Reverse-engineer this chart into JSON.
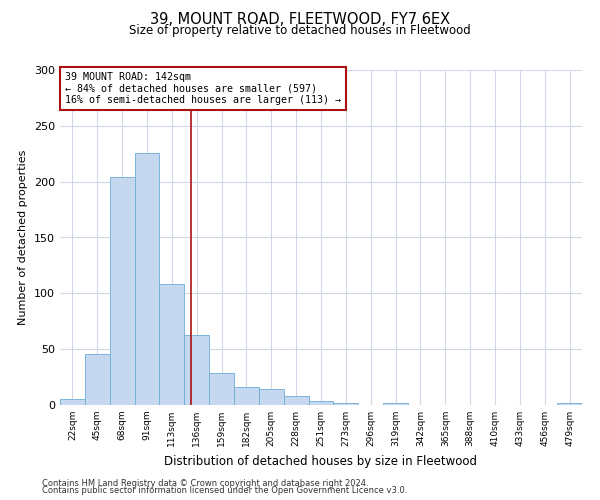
{
  "title": "39, MOUNT ROAD, FLEETWOOD, FY7 6EX",
  "subtitle": "Size of property relative to detached houses in Fleetwood",
  "xlabel": "Distribution of detached houses by size in Fleetwood",
  "ylabel": "Number of detached properties",
  "bar_labels": [
    "22sqm",
    "45sqm",
    "68sqm",
    "91sqm",
    "113sqm",
    "136sqm",
    "159sqm",
    "182sqm",
    "205sqm",
    "228sqm",
    "251sqm",
    "273sqm",
    "296sqm",
    "319sqm",
    "342sqm",
    "365sqm",
    "388sqm",
    "410sqm",
    "433sqm",
    "456sqm",
    "479sqm"
  ],
  "bar_heights": [
    5,
    46,
    204,
    226,
    108,
    63,
    29,
    16,
    14,
    8,
    4,
    2,
    0,
    2,
    0,
    0,
    0,
    0,
    0,
    0,
    2
  ],
  "bar_color": "#c5d8f0",
  "bar_edge_color": "#6baed6",
  "vline_x": 5.26,
  "vline_color": "#aa1111",
  "annotation_title": "39 MOUNT ROAD: 142sqm",
  "annotation_line1": "← 84% of detached houses are smaller (597)",
  "annotation_line2": "16% of semi-detached houses are larger (113) →",
  "annotation_box_color": "#ffffff",
  "annotation_box_edge": "#aa1111",
  "ylim": [
    0,
    300
  ],
  "yticks": [
    0,
    50,
    100,
    150,
    200,
    250,
    300
  ],
  "footer1": "Contains HM Land Registry data © Crown copyright and database right 2024.",
  "footer2": "Contains public sector information licensed under the Open Government Licence v3.0.",
  "background_color": "#ffffff",
  "grid_color": "#d0d8e8"
}
